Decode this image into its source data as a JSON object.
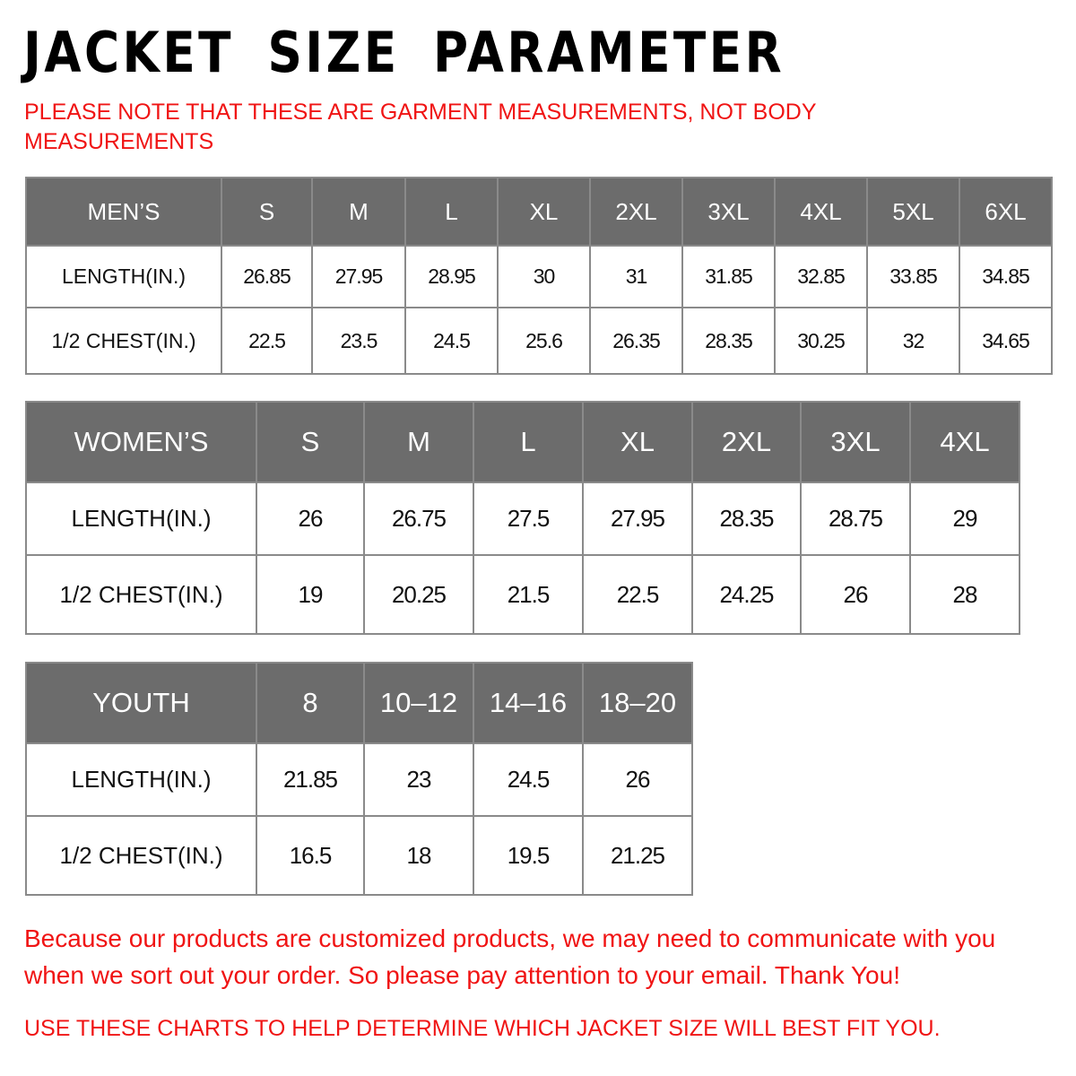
{
  "title": "JACKET  SIZE  PARAMETER",
  "note_lines": [
    "PLEASE NOTE THAT THESE ARE GARMENT MEASUREMENTS, NOT BODY",
    "MEASUREMENTS"
  ],
  "tables": [
    {
      "header": [
        "MEN’S",
        "S",
        "M",
        "L",
        "XL",
        "2XL",
        "3XL",
        "4XL",
        "5XL",
        "6XL"
      ],
      "rows": [
        [
          "LENGTH(IN.)",
          "26.85",
          "27.95",
          "28.95",
          "30",
          "31",
          "31.85",
          "32.85",
          "33.85",
          "34.85"
        ],
        [
          "1/2 CHEST(IN.)",
          "22.5",
          "23.5",
          "24.5",
          "25.6",
          "26.35",
          "28.35",
          "30.25",
          "32",
          "34.65"
        ]
      ]
    },
    {
      "header": [
        "WOMEN’S",
        "S",
        "M",
        "L",
        "XL",
        "2XL",
        "3XL",
        "4XL"
      ],
      "rows": [
        [
          "LENGTH(IN.)",
          "26",
          "26.75",
          "27.5",
          "27.95",
          "28.35",
          "28.75",
          "29"
        ],
        [
          "1/2 CHEST(IN.)",
          "19",
          "20.25",
          "21.5",
          "22.5",
          "24.25",
          "26",
          "28"
        ]
      ]
    },
    {
      "header": [
        "YOUTH",
        "8",
        "10–12",
        "14–16",
        "18–20"
      ],
      "rows": [
        [
          "LENGTH(IN.)",
          "21.85",
          "23",
          "24.5",
          "26"
        ],
        [
          "1/2 CHEST(IN.)",
          "16.5",
          "18",
          "19.5",
          "21.25"
        ]
      ]
    }
  ],
  "footer_lines": [
    "Because our products are customized products, we may need to communicate with you",
    "when we sort out your order. So please pay attention to your email. Thank You!"
  ],
  "closing_note": "USE THESE CHARTS TO HELP DETERMINE WHICH JACKET SIZE WILL BEST FIT YOU.",
  "colors": {
    "header_bg": "#6c6c6c",
    "accent_red": "#f01414",
    "border": "#8a8a8a"
  }
}
